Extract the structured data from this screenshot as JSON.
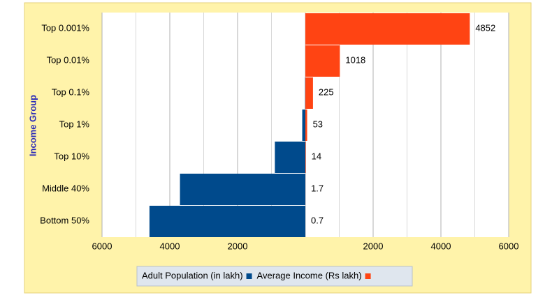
{
  "chart_data": {
    "type": "butterfly",
    "y_label": "Income Group",
    "categories": [
      "Top 0.001%",
      "Top 0.01%",
      "Top 0.1%",
      "Top 1%",
      "Top 10%",
      "Middle 40%",
      "Bottom 50%"
    ],
    "series": [
      {
        "name": "Adult Population (in lakh)",
        "color": "#004a8c",
        "side": "left",
        "values": [
          0.09,
          0.9,
          9,
          92,
          900,
          3700,
          4600
        ]
      },
      {
        "name": "Average Income (Rs lakh)",
        "color": "#ff4413",
        "side": "right",
        "values": [
          4852,
          1018,
          225,
          53,
          14,
          1.7,
          0.7
        ]
      }
    ],
    "xlim": [
      0,
      6000
    ],
    "xticks_left": [
      2000,
      4000,
      6000
    ],
    "xticks_right": [
      2000,
      4000,
      6000
    ],
    "minor_xticks": [
      1000,
      3000,
      5000
    ],
    "grid": true,
    "legend": "bottom"
  }
}
